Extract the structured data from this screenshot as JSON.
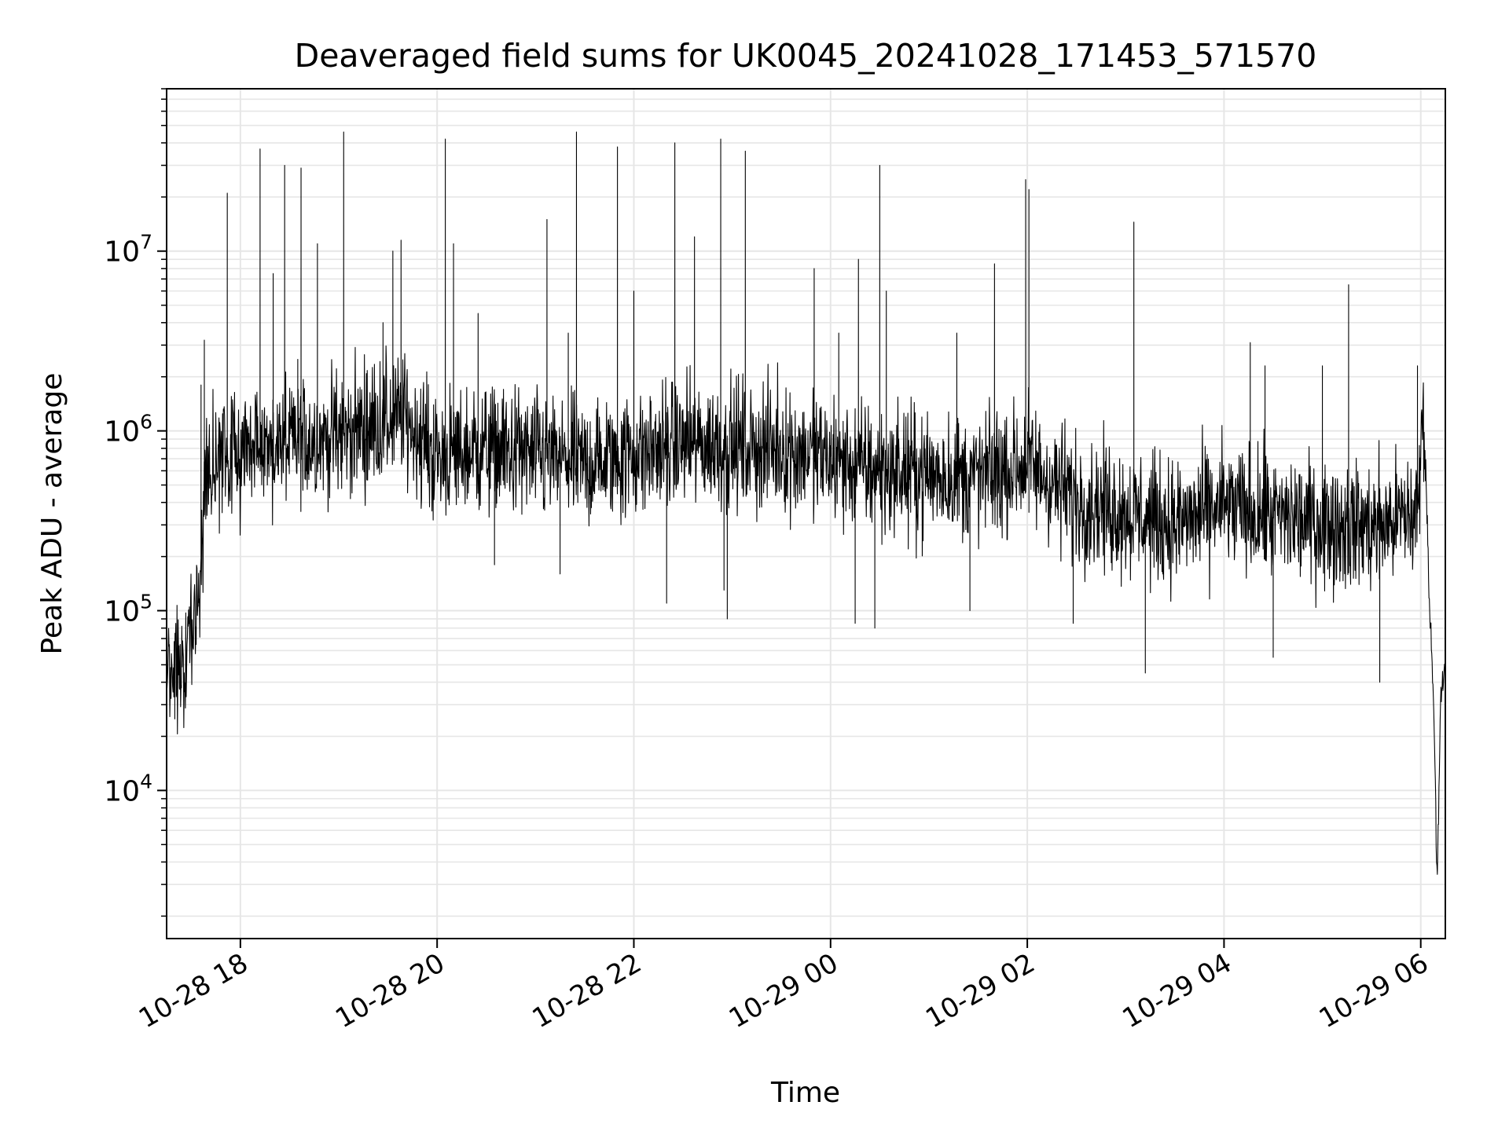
{
  "chart_data": {
    "type": "line",
    "title": "Deaveraged field sums for UK0045_20241028_171453_571570",
    "xlabel": "Time",
    "ylabel": "Peak ADU - average",
    "yscale": "log",
    "xlim": [
      "2024-10-28 17:15",
      "2024-10-29 06:15"
    ],
    "ylim": [
      1500,
      80000000
    ],
    "grid": true,
    "line_color": "#000000",
    "grid_color": "#e6e6e6",
    "x_ticks": [
      {
        "value": "2024-10-28 18:00",
        "label": "10-28 18"
      },
      {
        "value": "2024-10-28 20:00",
        "label": "10-28 20"
      },
      {
        "value": "2024-10-28 22:00",
        "label": "10-28 22"
      },
      {
        "value": "2024-10-29 00:00",
        "label": "10-29 00"
      },
      {
        "value": "2024-10-29 02:00",
        "label": "10-29 02"
      },
      {
        "value": "2024-10-29 04:00",
        "label": "10-29 04"
      },
      {
        "value": "2024-10-29 06:00",
        "label": "10-29 06"
      }
    ],
    "y_ticks": [
      {
        "value": 10000,
        "base": "10",
        "exp": "4"
      },
      {
        "value": 100000,
        "base": "10",
        "exp": "5"
      },
      {
        "value": 1000000,
        "base": "10",
        "exp": "6"
      },
      {
        "value": 10000000,
        "base": "10",
        "exp": "7"
      }
    ],
    "baseline": [
      {
        "t": "2024-10-28 17:15",
        "v": 60000
      },
      {
        "t": "2024-10-28 17:25",
        "v": 45000
      },
      {
        "t": "2024-10-28 17:35",
        "v": 130000
      },
      {
        "t": "2024-10-28 17:40",
        "v": 650000
      },
      {
        "t": "2024-10-28 18:00",
        "v": 750000
      },
      {
        "t": "2024-10-28 19:00",
        "v": 950000
      },
      {
        "t": "2024-10-28 19:40",
        "v": 1200000
      },
      {
        "t": "2024-10-28 20:00",
        "v": 700000
      },
      {
        "t": "2024-10-28 20:30",
        "v": 800000
      },
      {
        "t": "2024-10-28 21:30",
        "v": 650000
      },
      {
        "t": "2024-10-28 22:30",
        "v": 850000
      },
      {
        "t": "2024-10-28 23:30",
        "v": 800000
      },
      {
        "t": "2024-10-29 00:30",
        "v": 600000
      },
      {
        "t": "2024-10-29 01:30",
        "v": 550000
      },
      {
        "t": "2024-10-29 02:00",
        "v": 650000
      },
      {
        "t": "2024-10-29 02:30",
        "v": 420000
      },
      {
        "t": "2024-10-29 03:30",
        "v": 300000
      },
      {
        "t": "2024-10-29 04:00",
        "v": 380000
      },
      {
        "t": "2024-10-29 04:30",
        "v": 330000
      },
      {
        "t": "2024-10-29 05:30",
        "v": 290000
      },
      {
        "t": "2024-10-29 05:58",
        "v": 350000
      },
      {
        "t": "2024-10-29 06:02",
        "v": 1500000
      },
      {
        "t": "2024-10-29 06:05",
        "v": 130000
      },
      {
        "t": "2024-10-29 06:08",
        "v": 30000
      },
      {
        "t": "2024-10-29 06:10",
        "v": 3000
      },
      {
        "t": "2024-10-29 06:12",
        "v": 30000
      },
      {
        "t": "2024-10-29 06:15",
        "v": 50000
      }
    ],
    "spikes": [
      {
        "t": "2024-10-28 17:36",
        "v": 1800000
      },
      {
        "t": "2024-10-28 17:38",
        "v": 3200000
      },
      {
        "t": "2024-10-28 17:52",
        "v": 21000000
      },
      {
        "t": "2024-10-28 18:12",
        "v": 37000000
      },
      {
        "t": "2024-10-28 18:20",
        "v": 7500000
      },
      {
        "t": "2024-10-28 18:27",
        "v": 30000000
      },
      {
        "t": "2024-10-28 18:35",
        "v": 2500000
      },
      {
        "t": "2024-10-28 18:37",
        "v": 29000000
      },
      {
        "t": "2024-10-28 18:47",
        "v": 11000000
      },
      {
        "t": "2024-10-28 19:03",
        "v": 46000000
      },
      {
        "t": "2024-10-28 19:27",
        "v": 4000000
      },
      {
        "t": "2024-10-28 19:33",
        "v": 10000000
      },
      {
        "t": "2024-10-28 19:38",
        "v": 11500000
      },
      {
        "t": "2024-10-28 20:05",
        "v": 42000000
      },
      {
        "t": "2024-10-28 20:10",
        "v": 11000000
      },
      {
        "t": "2024-10-28 20:25",
        "v": 4500000
      },
      {
        "t": "2024-10-28 21:07",
        "v": 15000000
      },
      {
        "t": "2024-10-28 21:20",
        "v": 3500000
      },
      {
        "t": "2024-10-28 21:25",
        "v": 46000000
      },
      {
        "t": "2024-10-28 21:50",
        "v": 38000000
      },
      {
        "t": "2024-10-28 22:00",
        "v": 6000000
      },
      {
        "t": "2024-10-28 22:25",
        "v": 40000000
      },
      {
        "t": "2024-10-28 22:37",
        "v": 12000000
      },
      {
        "t": "2024-10-28 22:53",
        "v": 42000000
      },
      {
        "t": "2024-10-28 23:08",
        "v": 36000000
      },
      {
        "t": "2024-10-28 23:50",
        "v": 8000000
      },
      {
        "t": "2024-10-29 00:05",
        "v": 3500000
      },
      {
        "t": "2024-10-29 00:17",
        "v": 9000000
      },
      {
        "t": "2024-10-29 00:30",
        "v": 30000000
      },
      {
        "t": "2024-10-29 00:34",
        "v": 6000000
      },
      {
        "t": "2024-10-29 01:17",
        "v": 3500000
      },
      {
        "t": "2024-10-29 01:40",
        "v": 8500000
      },
      {
        "t": "2024-10-29 01:59",
        "v": 25000000
      },
      {
        "t": "2024-10-29 02:01",
        "v": 22000000
      },
      {
        "t": "2024-10-29 03:05",
        "v": 14500000
      },
      {
        "t": "2024-10-29 04:16",
        "v": 3100000
      },
      {
        "t": "2024-10-29 04:25",
        "v": 2300000
      },
      {
        "t": "2024-10-29 05:00",
        "v": 2300000
      },
      {
        "t": "2024-10-29 05:16",
        "v": 6500000
      },
      {
        "t": "2024-10-29 05:58",
        "v": 2300000
      }
    ],
    "dips": [
      {
        "t": "2024-10-28 17:20",
        "v": 25000
      },
      {
        "t": "2024-10-28 20:35",
        "v": 180000
      },
      {
        "t": "2024-10-28 21:15",
        "v": 160000
      },
      {
        "t": "2024-10-28 22:20",
        "v": 110000
      },
      {
        "t": "2024-10-28 22:55",
        "v": 130000
      },
      {
        "t": "2024-10-28 22:57",
        "v": 90000
      },
      {
        "t": "2024-10-29 00:15",
        "v": 85000
      },
      {
        "t": "2024-10-29 00:27",
        "v": 80000
      },
      {
        "t": "2024-10-29 01:25",
        "v": 100000
      },
      {
        "t": "2024-10-29 02:28",
        "v": 85000
      },
      {
        "t": "2024-10-29 03:12",
        "v": 45000
      },
      {
        "t": "2024-10-29 04:30",
        "v": 55000
      },
      {
        "t": "2024-10-29 05:35",
        "v": 40000
      }
    ]
  }
}
